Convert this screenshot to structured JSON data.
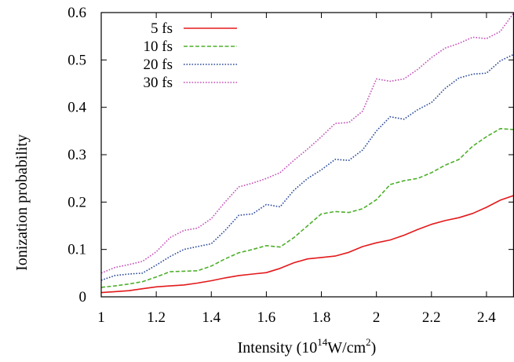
{
  "chart_data": {
    "type": "line",
    "xlabel": {
      "base": "Intensity (10",
      "sup1": "14",
      "mid": "W/cm",
      "sup2": "2",
      "end": ")"
    },
    "ylabel": "Ionization probability",
    "xlim": [
      1,
      2.5
    ],
    "ylim": [
      0,
      0.6
    ],
    "xticks": [
      1,
      1.2,
      1.4,
      1.6,
      1.8,
      2,
      2.2,
      2.4
    ],
    "xtick_labels": [
      "1",
      "1.2",
      "1.4",
      "1.6",
      "1.8",
      "2",
      "2.2",
      "2.4"
    ],
    "yticks": [
      0,
      0.1,
      0.2,
      0.3,
      0.4,
      0.5,
      0.6
    ],
    "ytick_labels": [
      "0",
      "0.1",
      "0.2",
      "0.3",
      "0.4",
      "0.5",
      "0.6"
    ],
    "legend_position": "top-left",
    "grid": false,
    "series": [
      {
        "name": "5 fs",
        "color": "#e31a1c",
        "dash": "solid",
        "x": [
          1.0,
          1.05,
          1.1,
          1.15,
          1.2,
          1.25,
          1.3,
          1.35,
          1.4,
          1.45,
          1.5,
          1.55,
          1.6,
          1.65,
          1.7,
          1.75,
          1.8,
          1.85,
          1.9,
          1.95,
          2.0,
          2.05,
          2.1,
          2.15,
          2.2,
          2.25,
          2.3,
          2.35,
          2.4,
          2.45,
          2.5
        ],
        "y": [
          0.009,
          0.011,
          0.013,
          0.017,
          0.021,
          0.023,
          0.025,
          0.029,
          0.034,
          0.04,
          0.045,
          0.048,
          0.051,
          0.06,
          0.072,
          0.08,
          0.083,
          0.086,
          0.094,
          0.106,
          0.114,
          0.12,
          0.13,
          0.142,
          0.153,
          0.161,
          0.167,
          0.176,
          0.189,
          0.204,
          0.214
        ]
      },
      {
        "name": "10 fs",
        "color": "#4daf2a",
        "dash": "dashed",
        "x": [
          1.0,
          1.05,
          1.1,
          1.15,
          1.2,
          1.25,
          1.3,
          1.35,
          1.4,
          1.45,
          1.5,
          1.55,
          1.6,
          1.65,
          1.7,
          1.75,
          1.8,
          1.85,
          1.9,
          1.95,
          2.0,
          2.05,
          2.1,
          2.15,
          2.2,
          2.25,
          2.3,
          2.35,
          2.4,
          2.45,
          2.5
        ],
        "y": [
          0.02,
          0.023,
          0.027,
          0.032,
          0.042,
          0.053,
          0.054,
          0.055,
          0.065,
          0.08,
          0.093,
          0.1,
          0.108,
          0.105,
          0.125,
          0.15,
          0.175,
          0.18,
          0.178,
          0.186,
          0.205,
          0.237,
          0.245,
          0.25,
          0.262,
          0.278,
          0.29,
          0.318,
          0.338,
          0.355,
          0.353
        ]
      },
      {
        "name": "20 fs",
        "color": "#2b4a9a",
        "dash": "dotted",
        "x": [
          1.0,
          1.05,
          1.1,
          1.15,
          1.2,
          1.25,
          1.3,
          1.35,
          1.4,
          1.45,
          1.5,
          1.55,
          1.6,
          1.65,
          1.7,
          1.75,
          1.8,
          1.85,
          1.9,
          1.95,
          2.0,
          2.05,
          2.1,
          2.15,
          2.2,
          2.25,
          2.3,
          2.35,
          2.4,
          2.45,
          2.5
        ],
        "y": [
          0.035,
          0.045,
          0.048,
          0.05,
          0.067,
          0.085,
          0.1,
          0.106,
          0.112,
          0.14,
          0.172,
          0.175,
          0.195,
          0.19,
          0.225,
          0.25,
          0.268,
          0.29,
          0.288,
          0.31,
          0.35,
          0.38,
          0.375,
          0.395,
          0.41,
          0.44,
          0.462,
          0.47,
          0.472,
          0.498,
          0.512
        ]
      },
      {
        "name": "30 fs",
        "color": "#c44fb8",
        "dash": "dotted",
        "x": [
          1.0,
          1.05,
          1.1,
          1.15,
          1.2,
          1.25,
          1.3,
          1.35,
          1.4,
          1.45,
          1.5,
          1.55,
          1.6,
          1.65,
          1.7,
          1.75,
          1.8,
          1.85,
          1.9,
          1.95,
          2.0,
          2.05,
          2.1,
          2.15,
          2.2,
          2.25,
          2.3,
          2.35,
          2.4,
          2.45,
          2.5
        ],
        "y": [
          0.05,
          0.062,
          0.068,
          0.075,
          0.095,
          0.125,
          0.14,
          0.145,
          0.165,
          0.2,
          0.232,
          0.24,
          0.25,
          0.262,
          0.288,
          0.312,
          0.338,
          0.366,
          0.368,
          0.392,
          0.46,
          0.455,
          0.46,
          0.48,
          0.505,
          0.525,
          0.535,
          0.548,
          0.545,
          0.56,
          0.6
        ]
      }
    ]
  }
}
